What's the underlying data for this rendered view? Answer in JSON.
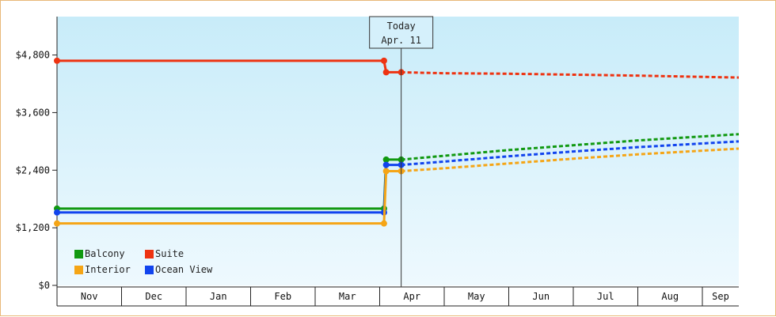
{
  "chart_data": {
    "type": "line",
    "title": "",
    "xlabel": "",
    "ylabel": "",
    "x_categories": [
      "Nov",
      "Dec",
      "Jan",
      "Feb",
      "Mar",
      "Apr",
      "May",
      "Jun",
      "Jul",
      "Aug",
      "Sep"
    ],
    "y_ticks": [
      "$0",
      "$1,200",
      "$2,400",
      "$3,600",
      "$4,800"
    ],
    "ylim": [
      0,
      5600
    ],
    "today_marker": {
      "line1": "Today",
      "line2": "Apr. 11",
      "date": "Apr 11"
    },
    "grid": false,
    "legend_position": "bottom-left",
    "series": [
      {
        "name": "Suite",
        "color": "#ee3311",
        "history": [
          [
            "Nov 1",
            4680
          ],
          [
            "Apr 3",
            4680
          ],
          [
            "Apr 4",
            4440
          ],
          [
            "Apr 11",
            4440
          ]
        ],
        "forecast": [
          [
            "Apr 11",
            4440
          ],
          [
            "May 1",
            4420
          ],
          [
            "Jun 1",
            4410
          ],
          [
            "Jul 1",
            4390
          ],
          [
            "Aug 1",
            4370
          ],
          [
            "Sep 30",
            4330
          ]
        ]
      },
      {
        "name": "Balcony",
        "color": "#119911",
        "history": [
          [
            "Nov 1",
            1600
          ],
          [
            "Apr 3",
            1600
          ],
          [
            "Apr 4",
            2620
          ],
          [
            "Apr 11",
            2620
          ]
        ],
        "forecast": [
          [
            "Apr 11",
            2620
          ],
          [
            "May 1",
            2700
          ],
          [
            "Jun 1",
            2820
          ],
          [
            "Jul 1",
            2920
          ],
          [
            "Aug 1",
            3020
          ],
          [
            "Sep 30",
            3150
          ]
        ]
      },
      {
        "name": "Ocean View",
        "color": "#1144ee",
        "history": [
          [
            "Nov 1",
            1520
          ],
          [
            "Apr 3",
            1520
          ],
          [
            "Apr 4",
            2510
          ],
          [
            "Apr 11",
            2510
          ]
        ],
        "forecast": [
          [
            "Apr 11",
            2510
          ],
          [
            "May 1",
            2580
          ],
          [
            "Jun 1",
            2690
          ],
          [
            "Jul 1",
            2790
          ],
          [
            "Aug 1",
            2880
          ],
          [
            "Sep 30",
            3000
          ]
        ]
      },
      {
        "name": "Interior",
        "color": "#f5a516",
        "history": [
          [
            "Nov 1",
            1290
          ],
          [
            "Apr 3",
            1290
          ],
          [
            "Apr 4",
            2380
          ],
          [
            "Apr 11",
            2380
          ]
        ],
        "forecast": [
          [
            "Apr 11",
            2380
          ],
          [
            "May 1",
            2440
          ],
          [
            "Jun 1",
            2540
          ],
          [
            "Jul 1",
            2640
          ],
          [
            "Aug 1",
            2730
          ],
          [
            "Sep 30",
            2850
          ]
        ]
      }
    ],
    "legend": [
      {
        "name": "Balcony",
        "color": "#119911"
      },
      {
        "name": "Suite",
        "color": "#ee3311"
      },
      {
        "name": "Interior",
        "color": "#f5a516"
      },
      {
        "name": "Ocean View",
        "color": "#1144ee"
      }
    ]
  }
}
